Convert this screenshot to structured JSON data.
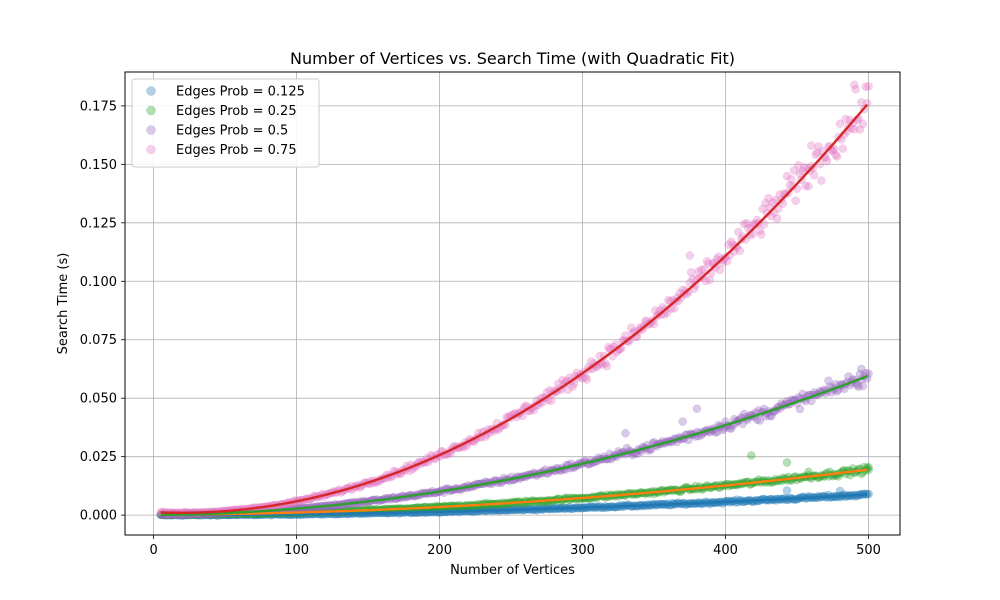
{
  "chart_data": {
    "type": "scatter",
    "title": "Number of Vertices vs. Search Time (with Quadratic Fit)",
    "xlabel": "Number of Vertices",
    "ylabel": "Search Time (s)",
    "xlim": [
      -20,
      522
    ],
    "ylim": [
      -0.0085,
      0.1895
    ],
    "xticks": [
      0,
      100,
      200,
      300,
      400,
      500
    ],
    "xtick_labels": [
      "0",
      "100",
      "200",
      "300",
      "400",
      "500"
    ],
    "yticks": [
      0.0,
      0.025,
      0.05,
      0.075,
      0.1,
      0.125,
      0.15,
      0.175
    ],
    "ytick_labels": [
      "0.000",
      "0.025",
      "0.050",
      "0.075",
      "0.100",
      "0.125",
      "0.150",
      "0.175"
    ],
    "grid": true,
    "legend_position": "top-left",
    "x_range": [
      5,
      500
    ],
    "series": [
      {
        "name": "Edges Prob = 0.125",
        "color": "#1f77b4",
        "fit_color": "#1f77b4",
        "fit_coefficients": [
          3.5e-08,
          1.5e-07,
          0.0
        ],
        "y_at_x": {
          "0": 0.0,
          "100": 0.0005,
          "200": 0.0016,
          "300": 0.0035,
          "400": 0.0058,
          "500": 0.0088
        },
        "outliers": [
          {
            "x": 443,
            "y": 0.0105
          },
          {
            "x": 480,
            "y": 0.0103
          }
        ]
      },
      {
        "name": "Edges Prob = 0.25",
        "color": "#2ca02c",
        "fit_color": "#ff7f0e",
        "fit_coefficients": [
          7.4e-08,
          1.6e-06,
          0.0002
        ],
        "y_at_x": {
          "0": 0.0002,
          "100": 0.001,
          "200": 0.0033,
          "300": 0.0072,
          "400": 0.0125,
          "500": 0.019
        },
        "outliers": [
          {
            "x": 418,
            "y": 0.0255
          },
          {
            "x": 443,
            "y": 0.0225
          },
          {
            "x": 458,
            "y": 0.0185
          },
          {
            "x": 500,
            "y": 0.0205
          }
        ]
      },
      {
        "name": "Edges Prob = 0.5",
        "color": "#9467bd",
        "fit_color": "#2ca02c",
        "fit_coefficients": [
          2.3e-07,
          4e-06,
          0.0001
        ],
        "y_at_x": {
          "0": 0.0001,
          "100": 0.0028,
          "200": 0.0098,
          "300": 0.0222,
          "400": 0.0389,
          "500": 0.0596
        },
        "outliers": [
          {
            "x": 330,
            "y": 0.035
          },
          {
            "x": 370,
            "y": 0.04
          },
          {
            "x": 380,
            "y": 0.0455
          },
          {
            "x": 495,
            "y": 0.0625
          }
        ]
      },
      {
        "name": "Edges Prob = 0.75",
        "color": "#e377c2",
        "fit_color": "#d62728",
        "fit_coefficients": [
          7.6e-07,
          -3e-05,
          0.0013
        ],
        "y_at_x": {
          "0": 0.0013,
          "100": 0.0059,
          "200": 0.0257,
          "300": 0.0607,
          "400": 0.111,
          "500": 0.1763
        },
        "outliers": [
          {
            "x": 375,
            "y": 0.111
          },
          {
            "x": 460,
            "y": 0.158
          },
          {
            "x": 490,
            "y": 0.184
          }
        ]
      }
    ]
  }
}
